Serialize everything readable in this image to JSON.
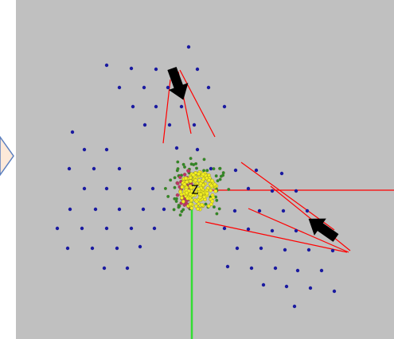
{
  "colors": {
    "page": "#ffffff",
    "arena": "#c0c0c0",
    "agent": "#1a1aa0",
    "ray": "#ff0000",
    "axis": "#33dd33",
    "swarm_yellow": "#f2ee20",
    "swarm_red": "#c0306a",
    "swarm_green": "#2a8a2a",
    "arrow": "#000000",
    "prev_arrow_fill": "#fde9d9",
    "prev_arrow_stroke": "#5b7fbf"
  },
  "icons": [
    "previous-arrow-icon",
    "pointer-arrow-icon",
    "pointer-arrow-icon"
  ]
}
